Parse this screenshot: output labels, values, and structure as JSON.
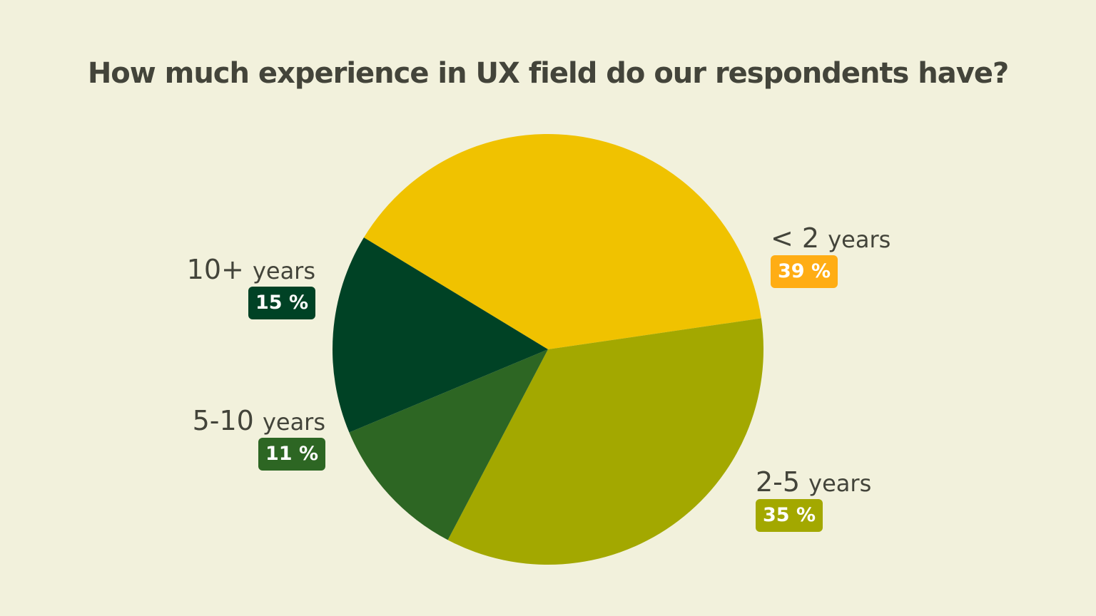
{
  "chart_data": {
    "type": "pie",
    "title": "How much experience in UX field do our respondents have?",
    "slices": [
      {
        "label": "< 2",
        "unit": "years",
        "value": 39,
        "value_label": "39 %",
        "color": "#f0c200",
        "badge_color": "#ffad14"
      },
      {
        "label": "2-5",
        "unit": "years",
        "value": 35,
        "value_label": "35 %",
        "color": "#a3a800",
        "badge_color": "#a3a800"
      },
      {
        "label": "5-10",
        "unit": "years",
        "value": 11,
        "value_label": "11 %",
        "color": "#2d6623",
        "badge_color": "#2d6623"
      },
      {
        "label": "10+",
        "unit": "years",
        "value": 15,
        "value_label": "15 %",
        "color": "#004225",
        "badge_color": "#004225"
      }
    ],
    "legend": "labels beside slices",
    "background": "#f2f1dc"
  }
}
